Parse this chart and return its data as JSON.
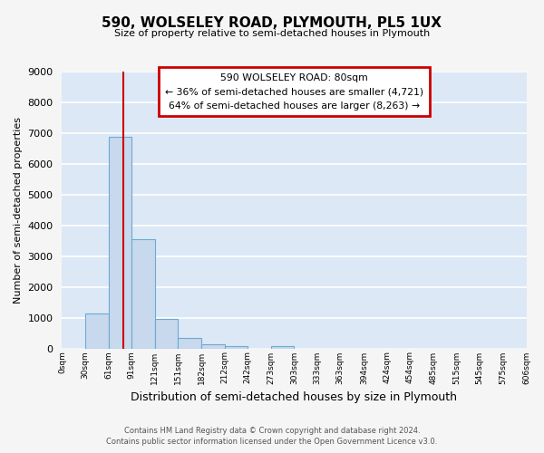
{
  "title": "590, WOLSELEY ROAD, PLYMOUTH, PL5 1UX",
  "subtitle": "Size of property relative to semi-detached houses in Plymouth",
  "xlabel": "Distribution of semi-detached houses by size in Plymouth",
  "ylabel": "Number of semi-detached properties",
  "bar_color": "#c8d9ed",
  "bar_edge_color": "#6aaad4",
  "bg_color": "#dce8f5",
  "grid_color": "#ffffff",
  "vline_color": "#cc0000",
  "vline_x": 80,
  "annotation_title": "590 WOLSELEY ROAD: 80sqm",
  "annotation_line1": "← 36% of semi-detached houses are smaller (4,721)",
  "annotation_line2": "64% of semi-detached houses are larger (8,263) →",
  "bin_edges": [
    0,
    30,
    61,
    91,
    121,
    151,
    182,
    212,
    242,
    273,
    303,
    333,
    363,
    394,
    424,
    454,
    485,
    515,
    545,
    575,
    606
  ],
  "bin_heights": [
    0,
    1120,
    6880,
    3560,
    970,
    340,
    130,
    80,
    0,
    70,
    0,
    0,
    0,
    0,
    0,
    0,
    0,
    0,
    0,
    0
  ],
  "ylim": [
    0,
    9000
  ],
  "yticks": [
    0,
    1000,
    2000,
    3000,
    4000,
    5000,
    6000,
    7000,
    8000,
    9000
  ],
  "footer1": "Contains HM Land Registry data © Crown copyright and database right 2024.",
  "footer2": "Contains public sector information licensed under the Open Government Licence v3.0.",
  "bin_labels": [
    "0sqm",
    "30sqm",
    "61sqm",
    "91sqm",
    "121sqm",
    "151sqm",
    "182sqm",
    "212sqm",
    "242sqm",
    "273sqm",
    "303sqm",
    "333sqm",
    "363sqm",
    "394sqm",
    "424sqm",
    "454sqm",
    "485sqm",
    "515sqm",
    "545sqm",
    "575sqm",
    "606sqm"
  ],
  "fig_bg_color": "#f5f5f5"
}
